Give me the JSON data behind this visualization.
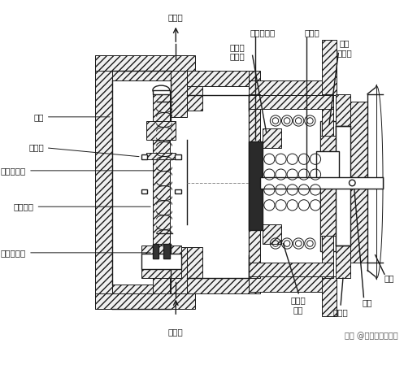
{
  "bg_color": "#ffffff",
  "line_color": "#1a1a1a",
  "labels": {
    "chu_shui_men": "出水门",
    "jin_shui_men": "进水门",
    "beng_ti": "泵体",
    "ding_wei_pian": "定位片",
    "dan_xiang_tan_huang": "单向阀弹簧",
    "dan_xiang_xin": "单向阀芯",
    "dan_xiang_jiao_quan": "单向阀胶圈",
    "an_quan_fa_jiao_dian": "安全阀胶垫",
    "an_quan_fa_jiao_dian_zuo": "安全阀\n胶垫座",
    "shou_dong_gan": "手动杆",
    "ya_li_tiao_jie_pan": "压力\n调节盘",
    "mi_feng_gai": "密封盖",
    "an_quan_fa_tan_huang": "安全阀\n弹簧",
    "liu_ding": "铆钉",
    "chuan_ba": "插把"
  },
  "watermark": "头条 @电子工程师小李",
  "font_size_label": 7.5,
  "font_size_watermark": 7
}
